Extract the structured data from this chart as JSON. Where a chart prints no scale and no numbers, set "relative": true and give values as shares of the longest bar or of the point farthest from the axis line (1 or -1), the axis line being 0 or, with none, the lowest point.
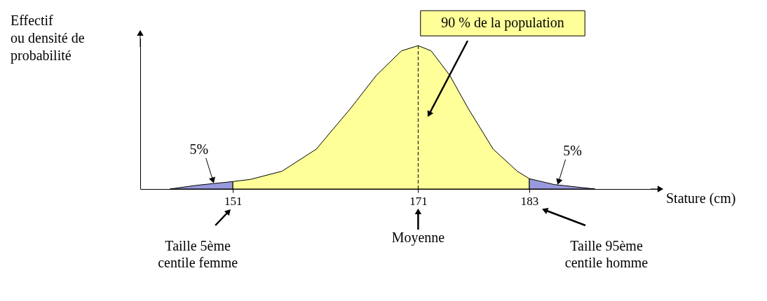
{
  "chart_data": {
    "type": "area",
    "relative": true,
    "xlabel": "Stature (cm)",
    "ylabel": "Effectif\nou densité de\nprobabilité",
    "xlim": [
      141,
      197
    ],
    "xticks": [
      151,
      171,
      183
    ],
    "tick_labels": "x",
    "grid": false,
    "series": [
      {
        "color": "#9999dd",
        "x": [
          144.2,
          147.1,
          151
        ],
        "values": [
          0,
          0.026,
          0.052
        ]
      },
      {
        "color": "#ffff99",
        "x": [
          151,
          152.9,
          156.3,
          160.0,
          163.7,
          166.5,
          169.2,
          171,
          172.4,
          174.4,
          176.4,
          179.1,
          181.7,
          183
        ],
        "values": [
          0.052,
          0.067,
          0.124,
          0.278,
          0.562,
          0.794,
          0.964,
          1,
          0.964,
          0.794,
          0.562,
          0.278,
          0.124,
          0.072
        ]
      },
      {
        "color": "#9999dd",
        "x": [
          183,
          185.7,
          190.1
        ],
        "values": [
          0.072,
          0.031,
          0
        ]
      }
    ],
    "ref_lines": [
      {
        "axis": "x",
        "value": 171,
        "line_style": "dashed",
        "color": "#000000"
      }
    ],
    "annotations": [
      {
        "text": "5%",
        "x": 149,
        "y": 0.04
      },
      {
        "text": "5%",
        "x": 186,
        "y": 0.03
      },
      "90 % de la population",
      "Taille 5ème\ncentile femme",
      "Moyenne",
      "Taille 95ème\ncentile homme"
    ]
  }
}
